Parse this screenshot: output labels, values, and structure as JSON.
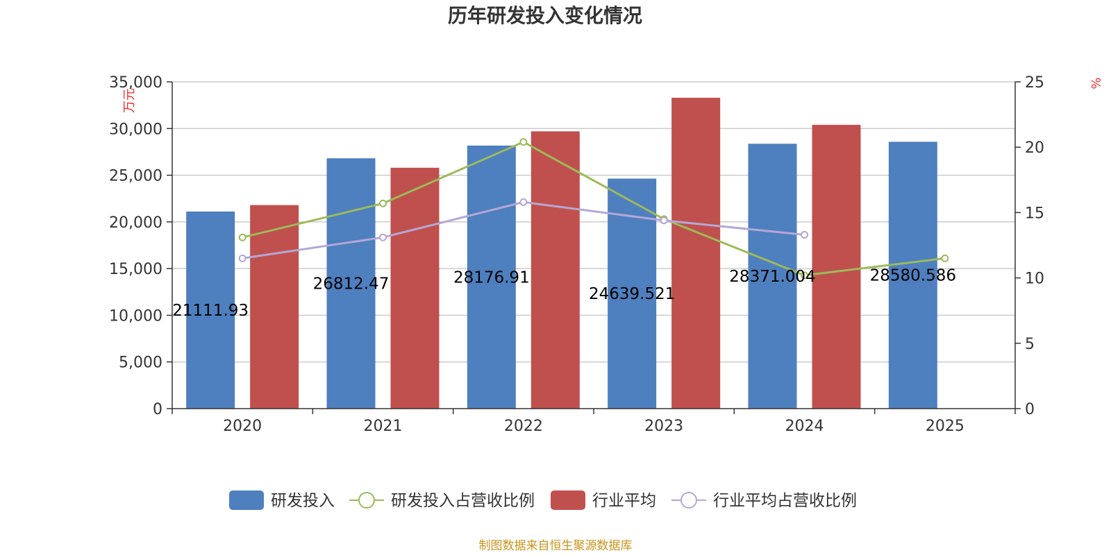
{
  "chart_data": {
    "type": "bar",
    "title": "历年研发投入变化情况",
    "categories": [
      "2020",
      "2021",
      "2022",
      "2023",
      "2024",
      "2025"
    ],
    "left_axis": {
      "unit": "万元",
      "min": 0,
      "max": 35000,
      "ticks": [
        "0",
        "5,000",
        "10,000",
        "15,000",
        "20,000",
        "25,000",
        "30,000",
        "35,000"
      ]
    },
    "right_axis": {
      "unit": "%",
      "min": 0,
      "max": 25,
      "ticks": [
        "0",
        "5",
        "10",
        "15",
        "20",
        "25"
      ]
    },
    "grid": true,
    "legend_position": "bottom",
    "series": [
      {
        "name": "研发投入",
        "type": "bar",
        "axis": "left",
        "color": "#4e7fbf",
        "values": [
          21111.93,
          26812.47,
          28176.91,
          24639.521,
          28371.004,
          28580.586
        ],
        "labels": [
          "21111.93",
          "26812.47",
          "28176.91",
          "24639.521",
          "28371.004",
          "28580.586"
        ]
      },
      {
        "name": "研发投入占营收比例",
        "type": "line",
        "axis": "right",
        "color": "#9bbb59",
        "values": [
          13.1,
          15.7,
          20.4,
          14.5,
          10.2,
          11.5
        ]
      },
      {
        "name": "行业平均",
        "type": "bar",
        "axis": "left",
        "color": "#c0504d",
        "values": [
          21800,
          25800,
          29700,
          33300,
          30400,
          null
        ]
      },
      {
        "name": "行业平均占营收比例",
        "type": "line",
        "axis": "right",
        "color": "#b4a7d6",
        "values": [
          11.5,
          13.1,
          15.8,
          14.4,
          13.3,
          null
        ]
      }
    ],
    "source": "制图数据来自恒生聚源数据库"
  }
}
